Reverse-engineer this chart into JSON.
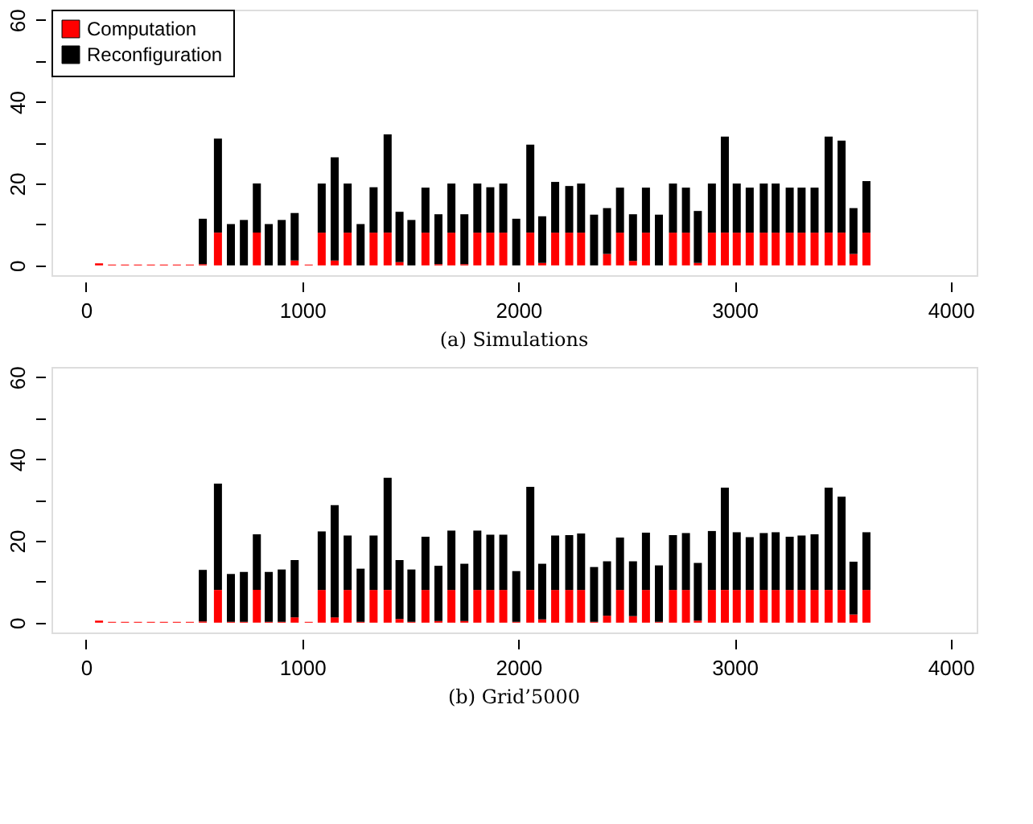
{
  "chart_data": [
    {
      "type": "bar",
      "title": "(a)  Simulations",
      "stacked": true,
      "legend": "top left",
      "grid": false,
      "x": [
        60,
        120,
        180,
        240,
        300,
        360,
        420,
        480,
        540,
        610,
        670,
        730,
        790,
        845,
        905,
        965,
        1030,
        1090,
        1150,
        1210,
        1270,
        1330,
        1395,
        1450,
        1505,
        1570,
        1630,
        1690,
        1750,
        1810,
        1870,
        1930,
        1990,
        2055,
        2110,
        2170,
        2235,
        2290,
        2350,
        2410,
        2470,
        2530,
        2590,
        2650,
        2715,
        2775,
        2830,
        2895,
        2955,
        3010,
        3070,
        3135,
        3190,
        3255,
        3310,
        3370,
        3435,
        3495,
        3550,
        3610
      ],
      "series": [
        {
          "name": "Computation",
          "color": "#ff0000",
          "values": [
            0.5,
            0.2,
            0.2,
            0.2,
            0.2,
            0.2,
            0.2,
            0.2,
            0.3,
            8,
            0,
            0,
            8,
            0,
            0,
            1.2,
            0.2,
            8,
            1.2,
            8,
            0,
            8,
            8,
            0.8,
            0,
            8,
            0.3,
            8,
            0.3,
            8,
            8,
            8,
            0,
            8,
            0.6,
            8,
            8,
            8,
            0,
            2.8,
            8,
            1.1,
            8,
            0,
            8,
            8,
            0.6,
            8,
            8,
            8,
            8,
            8,
            8,
            8,
            8,
            8,
            8,
            8,
            2.8,
            8
          ]
        },
        {
          "name": "Reconfiguration",
          "color": "#000000",
          "values": [
            0,
            0,
            0,
            0,
            0,
            0,
            0,
            0,
            11.1,
            23,
            10.1,
            11.1,
            12,
            10.1,
            11.1,
            11.6,
            0,
            12,
            25.2,
            12,
            10.1,
            11.1,
            24,
            12.3,
            11.1,
            11,
            12.2,
            12,
            12.2,
            12,
            11.1,
            12,
            11.4,
            21.5,
            11.4,
            12.4,
            11.4,
            12,
            12.4,
            11.2,
            11,
            11.4,
            11,
            12.4,
            12,
            11,
            12.7,
            12,
            23.5,
            12,
            11,
            12,
            12,
            11,
            11,
            11,
            23.5,
            22.5,
            11.2,
            12.6
          ]
        }
      ],
      "xlim": [
        -160,
        4120
      ],
      "xticks": [
        0,
        1000,
        2000,
        3000,
        4000
      ],
      "ylim": [
        -2.4,
        62.5
      ],
      "yticks": [
        0,
        {
          "value": 10,
          "label": null
        },
        20,
        {
          "value": 30,
          "label": null
        },
        40,
        {
          "value": 50,
          "label": null
        },
        60
      ]
    },
    {
      "type": "bar",
      "title": "(b)  Grid’5000",
      "stacked": true,
      "legend": "top left",
      "grid": false,
      "x": [
        60,
        120,
        180,
        240,
        300,
        360,
        420,
        480,
        540,
        610,
        670,
        730,
        790,
        845,
        905,
        965,
        1030,
        1090,
        1150,
        1210,
        1270,
        1330,
        1395,
        1450,
        1505,
        1570,
        1630,
        1690,
        1750,
        1810,
        1870,
        1930,
        1990,
        2055,
        2110,
        2170,
        2235,
        2290,
        2350,
        2410,
        2470,
        2530,
        2590,
        2650,
        2715,
        2775,
        2830,
        2895,
        2955,
        3010,
        3070,
        3135,
        3190,
        3255,
        3310,
        3370,
        3435,
        3495,
        3550,
        3610
      ],
      "series": [
        {
          "name": "Computation",
          "color": "#ff0000",
          "values": [
            0.5,
            0.2,
            0.2,
            0.2,
            0.2,
            0.2,
            0.2,
            0.2,
            0.3,
            8,
            0.2,
            0.2,
            8,
            0.2,
            0.2,
            1.3,
            0.2,
            8,
            1.3,
            8,
            0.2,
            8,
            8,
            0.9,
            0.2,
            8,
            0.4,
            8,
            0.4,
            8,
            8,
            8,
            0.2,
            8,
            0.8,
            8,
            8,
            8,
            0.2,
            1.7,
            8,
            1.6,
            8,
            0.2,
            8,
            8,
            0.5,
            8,
            8,
            8,
            8,
            8,
            8,
            8,
            8,
            8,
            8,
            8,
            2,
            8
          ]
        },
        {
          "name": "Reconfiguration",
          "color": "#000000",
          "values": [
            0,
            0,
            0,
            0,
            0,
            0,
            0,
            0,
            12.6,
            26,
            11.7,
            12.2,
            13.6,
            12.2,
            12.8,
            14,
            0,
            14.3,
            27.4,
            13.3,
            13,
            13.3,
            27.4,
            14.4,
            12.8,
            13,
            13.5,
            14.5,
            14,
            14.5,
            13.5,
            13.5,
            12.4,
            25.2,
            13.6,
            13.3,
            13.4,
            13.8,
            13.4,
            13.3,
            12.8,
            13.4,
            14,
            13.8,
            13.4,
            13.9,
            14.1,
            14.4,
            25,
            14.1,
            12.9,
            13.9,
            14.1,
            13,
            13.3,
            13.6,
            25,
            22.8,
            12.9,
            14.1
          ]
        }
      ],
      "xlim": [
        -160,
        4120
      ],
      "xticks": [
        0,
        1000,
        2000,
        3000,
        4000
      ],
      "ylim": [
        -2.4,
        62.5
      ],
      "yticks": [
        0,
        {
          "value": 10,
          "label": null
        },
        20,
        {
          "value": 30,
          "label": null
        },
        40,
        {
          "value": 50,
          "label": null
        },
        60
      ]
    }
  ]
}
